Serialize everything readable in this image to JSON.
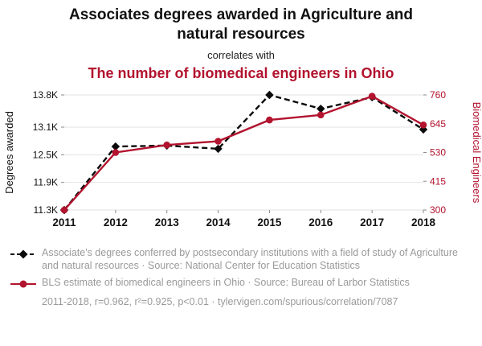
{
  "header": {
    "title": "Associates degrees awarded in Agriculture and natural resources",
    "connector": "correlates with",
    "subtitle": "The number of biomedical engineers in Ohio"
  },
  "colors": {
    "accent": "#b2132e",
    "series_black": "#0b0b0b",
    "grid": "#e2e2e2",
    "tick": "#8a8a8a",
    "axis_text": "#111111",
    "legend_text": "#9a9a9a"
  },
  "chart_data": {
    "type": "line",
    "x": [
      "2011",
      "2012",
      "2013",
      "2014",
      "2015",
      "2016",
      "2017",
      "2018"
    ],
    "left_axis": {
      "label": "Degrees awarded",
      "min": 11.3,
      "max": 13.8,
      "ticks": [
        {
          "v": 11.3,
          "label": "11.3K"
        },
        {
          "v": 11.9,
          "label": "11.9K"
        },
        {
          "v": 12.5,
          "label": "12.5K"
        },
        {
          "v": 13.1,
          "label": "13.1K"
        },
        {
          "v": 13.8,
          "label": "13.8K"
        }
      ]
    },
    "right_axis": {
      "label": "Biomedical Engineers",
      "min": 300,
      "max": 760,
      "ticks": [
        {
          "v": 300,
          "label": "300"
        },
        {
          "v": 415,
          "label": "415"
        },
        {
          "v": 530,
          "label": "530"
        },
        {
          "v": 645,
          "label": "645"
        },
        {
          "v": 760,
          "label": "760"
        }
      ]
    },
    "series": [
      {
        "name": "Associate's degrees in Agriculture and natural resources",
        "axis": "left",
        "color": "#0b0b0b",
        "dashed": true,
        "marker": "diamond",
        "values": [
          11.3,
          12.68,
          12.7,
          12.63,
          13.8,
          13.5,
          13.75,
          13.05
        ]
      },
      {
        "name": "BLS estimate of biomedical engineers in Ohio",
        "axis": "right",
        "color": "#b2132e",
        "dashed": false,
        "marker": "circle",
        "values": [
          300,
          530,
          560,
          575,
          660,
          680,
          755,
          640
        ]
      }
    ],
    "grid": true,
    "legend_position": "bottom"
  },
  "legend": {
    "items": [
      {
        "label": "Associate's degrees conferred by postsecondary institutions with a field of study of Agriculture and natural resources · Source: National Center for Education Statistics"
      },
      {
        "label": "BLS estimate of biomedical engineers in Ohio · Source: Bureau of Larbor Statistics"
      }
    ]
  },
  "footer": {
    "text": "2011-2018, r=0.962, r²=0.925, p<0.01 · tylervigen.com/spurious/correlation/7087"
  }
}
